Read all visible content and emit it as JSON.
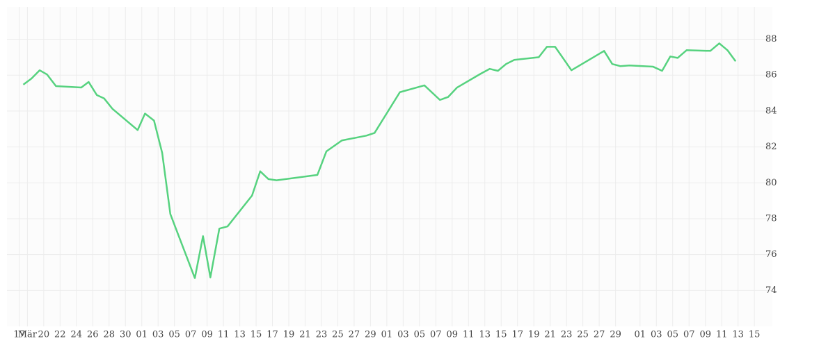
{
  "chart_data": {
    "type": "line",
    "x": [
      0.5,
      1.5,
      2.5,
      3.4,
      4.5,
      7.6,
      8.5,
      9.5,
      10.4,
      11.4,
      14.5,
      15.4,
      16.5,
      17.5,
      18.5,
      21.5,
      22.5,
      23.4,
      24.5,
      25.5,
      28.5,
      29.5,
      30.5,
      31.5,
      36.5,
      37.6,
      39.5,
      42.5,
      43.5,
      46.6,
      49.6,
      51.5,
      52.5,
      53.6,
      56.5,
      57.6,
      58.6,
      59.6,
      60.6,
      63.6,
      64.6,
      65.6,
      66.6,
      67.6,
      70.6,
      71.6,
      72.6,
      73.6,
      74.7,
      77.6,
      78.7,
      79.7,
      80.6,
      81.7,
      84.6,
      85.7,
      86.7,
      87.7
    ],
    "series": [
      {
        "color": "#56d27f",
        "values": [
          85.47,
          85.81,
          86.27,
          86.04,
          85.39,
          85.31,
          85.62,
          84.89,
          84.7,
          84.13,
          82.94,
          83.86,
          83.47,
          81.67,
          78.26,
          74.69,
          77.03,
          74.73,
          77.45,
          77.57,
          79.29,
          80.64,
          80.21,
          80.14,
          80.44,
          81.75,
          82.36,
          82.63,
          82.78,
          85.05,
          85.43,
          84.62,
          84.78,
          85.31,
          86.08,
          86.35,
          86.24,
          86.62,
          86.85,
          87.0,
          87.58,
          87.58,
          86.93,
          86.27,
          87.08,
          87.35,
          86.62,
          86.5,
          86.54,
          86.47,
          86.24,
          87.04,
          86.96,
          87.39,
          87.35,
          87.77,
          87.39,
          86.77
        ]
      }
    ],
    "xlim": [
      -1.5,
      92.2
    ],
    "xticks": [
      {
        "value": 0,
        "label": "17"
      },
      {
        "value": 1,
        "label": "Mär"
      },
      {
        "value": 3,
        "label": "20"
      },
      {
        "value": 5,
        "label": "22"
      },
      {
        "value": 7,
        "label": "24"
      },
      {
        "value": 9,
        "label": "26"
      },
      {
        "value": 11,
        "label": "28"
      },
      {
        "value": 13,
        "label": "30"
      },
      {
        "value": 15,
        "label": "01"
      },
      {
        "value": 17,
        "label": "03"
      },
      {
        "value": 19,
        "label": "05"
      },
      {
        "value": 21,
        "label": "07"
      },
      {
        "value": 23,
        "label": "09"
      },
      {
        "value": 25,
        "label": "11"
      },
      {
        "value": 27,
        "label": "13"
      },
      {
        "value": 29,
        "label": "15"
      },
      {
        "value": 31,
        "label": "17"
      },
      {
        "value": 33,
        "label": "19"
      },
      {
        "value": 35,
        "label": "21"
      },
      {
        "value": 37,
        "label": "23"
      },
      {
        "value": 39,
        "label": "25"
      },
      {
        "value": 41,
        "label": "27"
      },
      {
        "value": 43,
        "label": "29"
      },
      {
        "value": 45,
        "label": "01"
      },
      {
        "value": 47,
        "label": "03"
      },
      {
        "value": 49,
        "label": "05"
      },
      {
        "value": 51,
        "label": "07"
      },
      {
        "value": 53,
        "label": "09"
      },
      {
        "value": 55,
        "label": "11"
      },
      {
        "value": 57,
        "label": "13"
      },
      {
        "value": 59,
        "label": "15"
      },
      {
        "value": 61,
        "label": "17"
      },
      {
        "value": 63,
        "label": "19"
      },
      {
        "value": 65,
        "label": "21"
      },
      {
        "value": 67,
        "label": "23"
      },
      {
        "value": 69,
        "label": "25"
      },
      {
        "value": 71,
        "label": "27"
      },
      {
        "value": 73,
        "label": "29"
      },
      {
        "value": 76,
        "label": "01"
      },
      {
        "value": 78,
        "label": "03"
      },
      {
        "value": 80,
        "label": "05"
      },
      {
        "value": 82,
        "label": "07"
      },
      {
        "value": 84,
        "label": "09"
      },
      {
        "value": 86,
        "label": "11"
      },
      {
        "value": 88,
        "label": "13"
      },
      {
        "value": 90,
        "label": "15"
      }
    ],
    "ylim": [
      72,
      89.8
    ],
    "yticks": [
      74,
      76,
      78,
      80,
      82,
      84,
      86,
      88
    ],
    "grid": true
  }
}
